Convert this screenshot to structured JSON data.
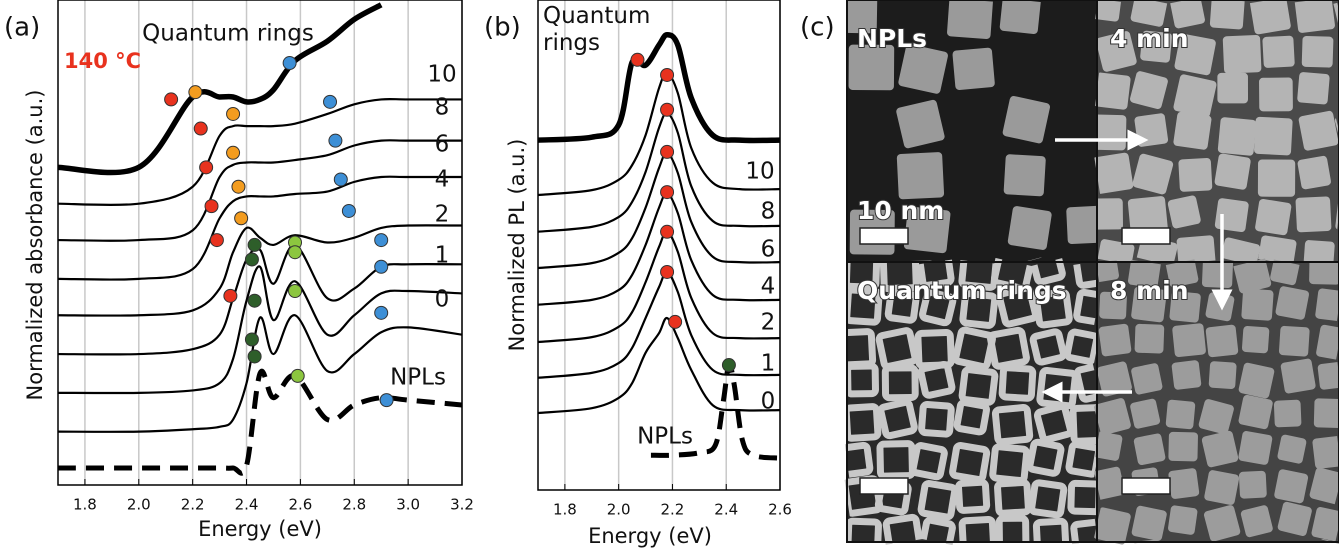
{
  "panel_labels": [
    "(a)",
    "(b)",
    "(c)"
  ],
  "chart_data": [
    {
      "type": "line",
      "xlabel": "Energy (eV)",
      "ylabel": "Normalized absorbance (a.u.)",
      "xlim": [
        1.7,
        3.2
      ],
      "ylim": [
        0,
        10
      ],
      "xticks": [
        1.8,
        {
          "value": 2,
          "label": "2.0"
        },
        2.2,
        2.4,
        2.6,
        2.8,
        {
          "value": 3,
          "label": "3.0"
        },
        3.2
      ],
      "grid": "x",
      "annotation": "140 °C",
      "annotation_color": "#e8321e",
      "x": [
        1.7,
        2.0,
        2.2,
        2.3,
        2.35,
        2.4,
        2.45,
        2.5,
        2.58,
        2.7,
        2.8,
        2.9,
        3.0,
        3.2
      ],
      "series": [
        {
          "name": "NPLs",
          "color": "#000000",
          "style": "dashed",
          "values": [
            0.35,
            0.35,
            0.35,
            0.35,
            0.35,
            0.4,
            2.3,
            1.8,
            2.25,
            1.35,
            1.65,
            1.8,
            1.75,
            1.65
          ]
        },
        {
          "name": "0",
          "color": "#000000",
          "style": "solid",
          "values": [
            1.1,
            1.1,
            1.15,
            1.2,
            1.35,
            2.1,
            3.45,
            2.7,
            3.5,
            2.35,
            2.7,
            3.15,
            3.25,
            3.1
          ]
        },
        {
          "name": "1",
          "color": "#000000",
          "style": "solid",
          "values": [
            1.9,
            1.9,
            1.95,
            2.1,
            2.6,
            3.8,
            4.5,
            3.4,
            4.2,
            3.1,
            3.5,
            3.95,
            4.0,
            3.95
          ]
        },
        {
          "name": "2",
          "color": "#000000",
          "style": "solid",
          "values": [
            2.7,
            2.7,
            2.8,
            3.1,
            3.85,
            4.65,
            4.85,
            4.15,
            4.95,
            3.85,
            4.05,
            4.5,
            4.55,
            4.55
          ]
        },
        {
          "name": "4",
          "color": "#000000",
          "style": "solid",
          "values": [
            3.5,
            3.5,
            3.6,
            4.05,
            4.8,
            5.3,
            5.1,
            4.95,
            5.15,
            5.0,
            5.1,
            5.3,
            5.35,
            5.35
          ]
        },
        {
          "name": "6",
          "color": "#000000",
          "style": "solid",
          "values": [
            4.25,
            4.25,
            4.45,
            5.5,
            5.85,
            5.95,
            5.95,
            5.95,
            6.0,
            6.05,
            6.25,
            6.35,
            6.35,
            6.35
          ]
        },
        {
          "name": "8",
          "color": "#000000",
          "style": "solid",
          "values": [
            5.05,
            5.05,
            5.25,
            6.35,
            6.6,
            6.65,
            6.65,
            6.65,
            6.7,
            6.8,
            7.0,
            7.1,
            7.1,
            7.1
          ]
        },
        {
          "name": "10",
          "color": "#000000",
          "style": "solid",
          "values": [
            5.8,
            5.8,
            6.15,
            7.2,
            7.4,
            7.4,
            7.4,
            7.4,
            7.45,
            7.65,
            7.85,
            7.95,
            7.95,
            7.95
          ]
        },
        {
          "name": "Quantum rings",
          "color": "#000000",
          "style": "bold",
          "values": [
            6.55,
            6.55,
            8.0,
            8.0,
            8.0,
            7.9,
            7.95,
            8.15,
            8.75,
            9.15,
            9.6,
            9.9,
            null,
            null
          ]
        }
      ],
      "markers": [
        {
          "color": "#e8321e",
          "x": [
            2.12,
            2.23,
            2.25,
            2.27,
            2.29,
            2.34
          ],
          "values": [
            7.95,
            7.35,
            6.55,
            5.75,
            5.05,
            3.9
          ]
        },
        {
          "color": "#f39c1f",
          "x": [
            2.21,
            2.35,
            2.35,
            2.37,
            2.38
          ],
          "values": [
            8.1,
            7.65,
            6.85,
            6.15,
            5.5
          ]
        },
        {
          "color": "#3d8fd6",
          "x": [
            2.56,
            2.71,
            2.73,
            2.75,
            2.78,
            2.9,
            2.9,
            2.9,
            2.92
          ],
          "values": [
            8.7,
            7.9,
            7.1,
            6.3,
            5.65,
            5.05,
            4.5,
            3.55,
            1.75
          ]
        },
        {
          "color": "#2e5e2a",
          "x": [
            2.43,
            2.42,
            2.43,
            2.42,
            2.43
          ],
          "values": [
            4.95,
            4.65,
            3.8,
            3.0,
            2.65
          ]
        },
        {
          "color": "#8cc63f",
          "x": [
            2.58,
            2.58,
            2.58,
            2.59
          ],
          "values": [
            5.0,
            4.8,
            4.0,
            2.25
          ]
        }
      ]
    },
    {
      "type": "line",
      "xlabel": "Energy (eV)",
      "ylabel": "Normalized PL (a.u.)",
      "xlim": [
        1.7,
        2.6
      ],
      "ylim": [
        0,
        10
      ],
      "xticks": [
        1.8,
        {
          "value": 2,
          "label": "2.0"
        },
        2.2,
        2.4,
        2.6
      ],
      "grid": "x",
      "x": [
        1.7,
        1.9,
        2.0,
        2.05,
        2.1,
        2.15,
        2.18,
        2.22,
        2.27,
        2.35,
        2.45,
        2.6
      ],
      "series": [
        {
          "name": "NPLs",
          "color": "#000000",
          "style": "dashed",
          "x": [
            2.12,
            2.2,
            2.3,
            2.36,
            2.39,
            2.41,
            2.43,
            2.46,
            2.5,
            2.6
          ],
          "values": [
            0.71,
            0.71,
            0.76,
            0.92,
            1.84,
            2.55,
            2.14,
            1.02,
            0.71,
            0.65
          ]
        },
        {
          "name": "0",
          "color": "#000000",
          "style": "solid",
          "values": [
            1.57,
            1.67,
            1.88,
            2.18,
            2.8,
            3.2,
            3.51,
            3.1,
            2.45,
            1.73,
            1.63,
            1.63
          ]
        },
        {
          "name": "1",
          "color": "#000000",
          "style": "solid",
          "values": [
            2.29,
            2.39,
            2.59,
            2.9,
            3.51,
            4.14,
            4.45,
            4.04,
            3.16,
            2.45,
            2.35,
            2.35
          ]
        },
        {
          "name": "2",
          "color": "#000000",
          "style": "solid",
          "values": [
            3.02,
            3.12,
            3.33,
            3.63,
            4.24,
            4.96,
            5.27,
            4.86,
            3.92,
            3.2,
            3.1,
            3.1
          ]
        },
        {
          "name": "4",
          "color": "#000000",
          "style": "solid",
          "values": [
            3.78,
            3.88,
            4.08,
            4.39,
            5.0,
            5.76,
            6.06,
            5.65,
            4.69,
            3.98,
            3.88,
            3.88
          ]
        },
        {
          "name": "6",
          "color": "#000000",
          "style": "solid",
          "values": [
            4.53,
            4.63,
            4.84,
            5.14,
            5.76,
            6.57,
            6.88,
            6.47,
            5.47,
            4.76,
            4.65,
            4.65
          ]
        },
        {
          "name": "8",
          "color": "#000000",
          "style": "solid",
          "values": [
            5.27,
            5.37,
            5.57,
            5.88,
            6.49,
            7.39,
            7.69,
            7.29,
            6.2,
            5.49,
            5.39,
            5.39
          ]
        },
        {
          "name": "10",
          "color": "#000000",
          "style": "solid",
          "values": [
            6.02,
            6.12,
            6.33,
            6.63,
            7.24,
            8.2,
            8.51,
            8.1,
            6.98,
            6.27,
            6.14,
            6.14
          ]
        },
        {
          "name": "Quantum rings",
          "color": "#000000",
          "style": "bold",
          "values": [
            7.14,
            7.2,
            7.45,
            8.73,
            8.67,
            9.08,
            9.29,
            9.08,
            8.0,
            7.24,
            7.14,
            7.14
          ]
        }
      ],
      "markers": [
        {
          "color": "#e8321e",
          "x": [
            2.07,
            2.18,
            2.18,
            2.18,
            2.18,
            2.18,
            2.18,
            2.21
          ],
          "values": [
            8.78,
            8.47,
            7.76,
            6.9,
            6.08,
            5.27,
            4.45,
            3.43
          ]
        },
        {
          "color": "#2e5e2a",
          "x": [
            2.41
          ],
          "values": [
            2.55
          ]
        }
      ]
    }
  ],
  "images": [
    {
      "label": "NPLs",
      "scale_bar": "10 nm"
    },
    {
      "label": "4 min"
    },
    {
      "label": "Quantum rings"
    },
    {
      "label": "8 min"
    }
  ]
}
